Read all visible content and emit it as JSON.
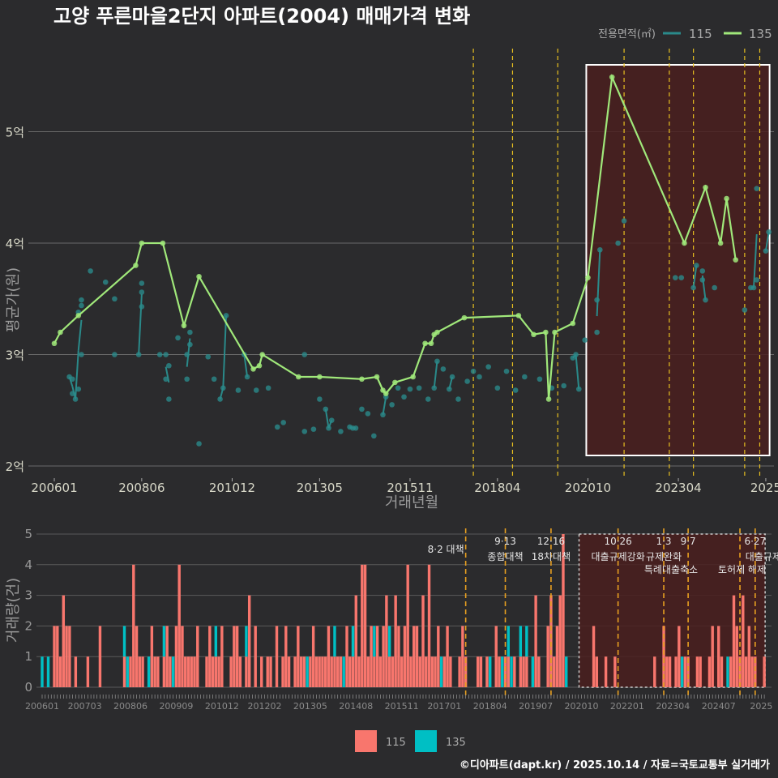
{
  "title": "고양 푸른마을2단지 아파트(2004) 매매가격 변화",
  "footer": "©디아파트(dapt.kr) / 2025.10.14 / 자료=국토교통부 실거래가",
  "colors": {
    "s115_line": "#2a8a8a",
    "s135_line": "#a0e87a",
    "bar115": "#f8766d",
    "bar135": "#00bfc4",
    "policy": "#e8c020",
    "highlight": "#4a1e1e"
  },
  "chart_data": [
    {
      "type": "line",
      "title": "고양 푸른마을2단지 아파트(2004) 매매가격 변화",
      "xlabel": "거래년월",
      "ylabel": "평균가(원)",
      "legend_title": "전용면적(㎡)",
      "legend_position": "top-right",
      "yticks": [
        {
          "v": 2,
          "label": "2억"
        },
        {
          "v": 3,
          "label": "3억"
        },
        {
          "v": 4,
          "label": "4억"
        },
        {
          "v": 5,
          "label": "5억"
        }
      ],
      "xticks": [
        {
          "m": 0,
          "label": "200601"
        },
        {
          "m": 29,
          "label": "200806"
        },
        {
          "m": 59,
          "label": "201012"
        },
        {
          "m": 88,
          "label": "201305"
        },
        {
          "m": 118,
          "label": "201511"
        },
        {
          "m": 147,
          "label": "201804"
        },
        {
          "m": 177,
          "label": "202010"
        },
        {
          "m": 207,
          "label": "202304"
        },
        {
          "m": 236,
          "label": "2025"
        }
      ],
      "x_unit": "months since 2006-01",
      "ylim": [
        1.9,
        5.6
      ],
      "highlight_months": [
        177,
        237
      ],
      "policy_months": [
        139,
        152,
        167,
        189,
        204,
        212,
        229,
        234
      ],
      "series": [
        {
          "name": "115",
          "points": [
            [
              5,
              2.8
            ],
            [
              6,
              2.78
            ],
            [
              6,
              2.65
            ],
            [
              7,
              2.6
            ],
            [
              8,
              2.69
            ],
            [
              9,
              3.0
            ],
            [
              9,
              3.49
            ],
            [
              9,
              3.44
            ],
            [
              8,
              3.38
            ],
            [
              12,
              3.75
            ],
            [
              17,
              3.65
            ],
            [
              20,
              3.5
            ],
            [
              20,
              3.0
            ],
            [
              28,
              3.0
            ],
            [
              29,
              3.64
            ],
            [
              29,
              3.56
            ],
            [
              29,
              3.43
            ],
            [
              35,
              3.0
            ],
            [
              37,
              3.0
            ],
            [
              37,
              2.78
            ],
            [
              38,
              2.9
            ],
            [
              38,
              2.6
            ],
            [
              41,
              3.15
            ],
            [
              44,
              3.0
            ],
            [
              44,
              2.78
            ],
            [
              45,
              3.2
            ],
            [
              45,
              3.09
            ],
            [
              48,
              2.2
            ],
            [
              51,
              2.98
            ],
            [
              53,
              2.78
            ],
            [
              55,
              2.6
            ],
            [
              56,
              2.7
            ],
            [
              57,
              3.35
            ],
            [
              61,
              2.68
            ],
            [
              63,
              3.0
            ],
            [
              64,
              2.8
            ],
            [
              67,
              2.68
            ],
            [
              71,
              2.7
            ],
            [
              74,
              2.35
            ],
            [
              76,
              2.39
            ],
            [
              83,
              3.0
            ],
            [
              83,
              2.31
            ],
            [
              86,
              2.33
            ],
            [
              88,
              2.6
            ],
            [
              90,
              2.51
            ],
            [
              91,
              2.34
            ],
            [
              92,
              2.41
            ],
            [
              95,
              2.31
            ],
            [
              98,
              2.35
            ],
            [
              99,
              2.34
            ],
            [
              100,
              2.34
            ],
            [
              102,
              2.51
            ],
            [
              104,
              2.47
            ],
            [
              106,
              2.27
            ],
            [
              109,
              2.46
            ],
            [
              110,
              2.62
            ],
            [
              112,
              2.55
            ],
            [
              114,
              2.7
            ],
            [
              116,
              2.62
            ],
            [
              118,
              2.69
            ],
            [
              121,
              2.7
            ],
            [
              124,
              2.6
            ],
            [
              126,
              2.7
            ],
            [
              127,
              2.94
            ],
            [
              129,
              2.87
            ],
            [
              131,
              2.69
            ],
            [
              132,
              2.8
            ],
            [
              134,
              2.6
            ],
            [
              137,
              2.76
            ],
            [
              139,
              2.85
            ],
            [
              141,
              2.8
            ],
            [
              144,
              2.89
            ],
            [
              147,
              2.7
            ],
            [
              150,
              2.85
            ],
            [
              153,
              2.68
            ],
            [
              156,
              2.8
            ],
            [
              161,
              2.78
            ],
            [
              165,
              2.7
            ],
            [
              169,
              2.72
            ],
            [
              172,
              2.97
            ],
            [
              173,
              3.0
            ],
            [
              174,
              2.69
            ],
            [
              176,
              3.13
            ],
            [
              180,
              3.2
            ],
            [
              180,
              3.49
            ],
            [
              181,
              3.94
            ],
            [
              187,
              4.0
            ],
            [
              189,
              4.2
            ],
            [
              206,
              3.69
            ],
            [
              208,
              3.69
            ],
            [
              212,
              3.6
            ],
            [
              213,
              3.8
            ],
            [
              215,
              3.75
            ],
            [
              215,
              3.67
            ],
            [
              216,
              3.49
            ],
            [
              219,
              3.6
            ],
            [
              229,
              3.4
            ],
            [
              231,
              3.6
            ],
            [
              232,
              3.6
            ],
            [
              233,
              4.49
            ],
            [
              233,
              3.67
            ],
            [
              236,
              3.93
            ],
            [
              237,
              4.1
            ]
          ]
        },
        {
          "name": "135",
          "points": [
            [
              0,
              3.1
            ],
            [
              2,
              3.2
            ],
            [
              8,
              3.35
            ],
            [
              27,
              3.8
            ],
            [
              29,
              4.0
            ],
            [
              36,
              4.0
            ],
            [
              43,
              3.26
            ],
            [
              48,
              3.7
            ],
            [
              66,
              2.87
            ],
            [
              68,
              2.9
            ],
            [
              69,
              3.0
            ],
            [
              81,
              2.8
            ],
            [
              88,
              2.8
            ],
            [
              102,
              2.78
            ],
            [
              107,
              2.8
            ],
            [
              109,
              2.68
            ],
            [
              110,
              2.65
            ],
            [
              113,
              2.75
            ],
            [
              119,
              2.8
            ],
            [
              123,
              3.1
            ],
            [
              125,
              3.1
            ],
            [
              126,
              3.18
            ],
            [
              127,
              3.2
            ],
            [
              136,
              3.33
            ],
            [
              154,
              3.35
            ],
            [
              159,
              3.18
            ],
            [
              163,
              3.2
            ],
            [
              164,
              2.6
            ],
            [
              166,
              3.2
            ],
            [
              172,
              3.28
            ],
            [
              177,
              3.69
            ],
            [
              185,
              5.49
            ],
            [
              209,
              4.0
            ],
            [
              216,
              4.5
            ],
            [
              221,
              4.0
            ],
            [
              223,
              4.4
            ],
            [
              226,
              3.85
            ]
          ]
        }
      ]
    },
    {
      "type": "bar",
      "ylabel": "거래량(건)",
      "yticks": [
        0,
        1,
        2,
        3,
        4,
        5
      ],
      "ylim": [
        0,
        5
      ],
      "stacked": true,
      "xticks": [
        {
          "m": 0,
          "label": "200601"
        },
        {
          "m": 14,
          "label": "200703"
        },
        {
          "m": 29,
          "label": "200806"
        },
        {
          "m": 44,
          "label": "200909"
        },
        {
          "m": 59,
          "label": "201012"
        },
        {
          "m": 73,
          "label": "201202"
        },
        {
          "m": 88,
          "label": "201305"
        },
        {
          "m": 103,
          "label": "201408"
        },
        {
          "m": 118,
          "label": "201511"
        },
        {
          "m": 132,
          "label": "201701"
        },
        {
          "m": 147,
          "label": "201804"
        },
        {
          "m": 162,
          "label": "201907"
        },
        {
          "m": 177,
          "label": "202010"
        },
        {
          "m": 192,
          "label": "202201"
        },
        {
          "m": 207,
          "label": "202304"
        },
        {
          "m": 222,
          "label": "202407"
        },
        {
          "m": 236,
          "label": "2025"
        }
      ],
      "legend": [
        "115",
        "135"
      ],
      "policies": [
        {
          "m": 139,
          "date": "",
          "label": "8·2 대책"
        },
        {
          "m": 152,
          "date": "9·13",
          "label": "종합대책"
        },
        {
          "m": 167,
          "date": "12·16",
          "label": "18차대책"
        },
        {
          "m": 189,
          "date": "10·26",
          "label": "대출규제강화"
        },
        {
          "m": 204,
          "date": "1·3",
          "label": "규제완화"
        },
        {
          "m": 212,
          "date": "9·7",
          "label": "특례대출축소"
        },
        {
          "m": 229,
          "date": "",
          "label": "토허제 해제"
        },
        {
          "m": 234,
          "date": "6·27",
          "label": "대출규제"
        }
      ],
      "volume_115": [
        0,
        0,
        0,
        0,
        2,
        2,
        1,
        3,
        2,
        2,
        0,
        1,
        0,
        0,
        0,
        1,
        0,
        0,
        0,
        2,
        0,
        0,
        0,
        0,
        0,
        0,
        0,
        1,
        0,
        1,
        4,
        2,
        1,
        1,
        0,
        0,
        2,
        1,
        1,
        0,
        1,
        2,
        1,
        0,
        2,
        4,
        2,
        1,
        1,
        1,
        1,
        2,
        0,
        0,
        1,
        2,
        1,
        1,
        1,
        2,
        0,
        0,
        1,
        2,
        2,
        1,
        0,
        1,
        3,
        0,
        2,
        0,
        1,
        0,
        1,
        1,
        0,
        2,
        0,
        1,
        2,
        1,
        0,
        1,
        2,
        1,
        1,
        0,
        1,
        2,
        1,
        1,
        1,
        1,
        2,
        1,
        1,
        1,
        1,
        0,
        2,
        1,
        1,
        3,
        1,
        4,
        4,
        1,
        2,
        1,
        2,
        1,
        2,
        3,
        1,
        1,
        3,
        2,
        1,
        2,
        4,
        1,
        2,
        2,
        1,
        3,
        1,
        4,
        1,
        1,
        2,
        0,
        1,
        2,
        1,
        0,
        0,
        1,
        2,
        1,
        0,
        0,
        0,
        1,
        1,
        0,
        1,
        0,
        0,
        2,
        1,
        0,
        1,
        1,
        0,
        1,
        0,
        1,
        1,
        1,
        0,
        0,
        3,
        1,
        0,
        0,
        2,
        3,
        1,
        2,
        3,
        5,
        0,
        0,
        0,
        0,
        0,
        0,
        0,
        0,
        0,
        2,
        1,
        0,
        0,
        1,
        0,
        0,
        1,
        0,
        0,
        0,
        0,
        0,
        0,
        0,
        0,
        0,
        0,
        0,
        0,
        1,
        0,
        0,
        2,
        1,
        1,
        0,
        1,
        2,
        0,
        1,
        1,
        0,
        0,
        1,
        1,
        0,
        0,
        1,
        2,
        0,
        2,
        1,
        0,
        0,
        1,
        3,
        2,
        1,
        3,
        1,
        2,
        1,
        1,
        0,
        0,
        1
      ],
      "volume_135": [
        1,
        0,
        1,
        0,
        0,
        0,
        0,
        0,
        0,
        0,
        0,
        0,
        0,
        0,
        0,
        0,
        0,
        0,
        0,
        0,
        0,
        0,
        0,
        0,
        0,
        0,
        0,
        1,
        1,
        0,
        0,
        0,
        0,
        0,
        0,
        1,
        0,
        0,
        0,
        0,
        1,
        0,
        0,
        1,
        0,
        0,
        0,
        0,
        0,
        0,
        0,
        0,
        0,
        0,
        0,
        0,
        0,
        1,
        0,
        0,
        0,
        0,
        0,
        0,
        0,
        0,
        0,
        1,
        0,
        0,
        0,
        0,
        0,
        0,
        0,
        0,
        0,
        0,
        0,
        0,
        0,
        0,
        0,
        0,
        0,
        0,
        0,
        1,
        0,
        0,
        0,
        0,
        0,
        0,
        0,
        0,
        1,
        0,
        0,
        1,
        0,
        0,
        1,
        0,
        0,
        0,
        0,
        0,
        0,
        1,
        0,
        0,
        0,
        0,
        1,
        0,
        0,
        0,
        0,
        0,
        0,
        0,
        0,
        0,
        0,
        0,
        0,
        0,
        0,
        0,
        0,
        1,
        0,
        0,
        0,
        0,
        0,
        0,
        0,
        0,
        0,
        0,
        0,
        0,
        0,
        0,
        0,
        1,
        0,
        0,
        0,
        1,
        0,
        1,
        1,
        0,
        0,
        1,
        0,
        1,
        0,
        1,
        0,
        0,
        0,
        0,
        0,
        0,
        0,
        0,
        0,
        0,
        1,
        0,
        0,
        0,
        0,
        0,
        0,
        0,
        0,
        0,
        0,
        0,
        0,
        0,
        0,
        0,
        0,
        0,
        0,
        0,
        0,
        0,
        0,
        0,
        0,
        0,
        0,
        0,
        0,
        0,
        0,
        0,
        0,
        0,
        0,
        0,
        0,
        0,
        1,
        0,
        0,
        0,
        0,
        0,
        0,
        0,
        0,
        0,
        0,
        0,
        0,
        0,
        0,
        1,
        0,
        0,
        0,
        0,
        0,
        0,
        0,
        0,
        0,
        0,
        0,
        0
      ]
    }
  ]
}
